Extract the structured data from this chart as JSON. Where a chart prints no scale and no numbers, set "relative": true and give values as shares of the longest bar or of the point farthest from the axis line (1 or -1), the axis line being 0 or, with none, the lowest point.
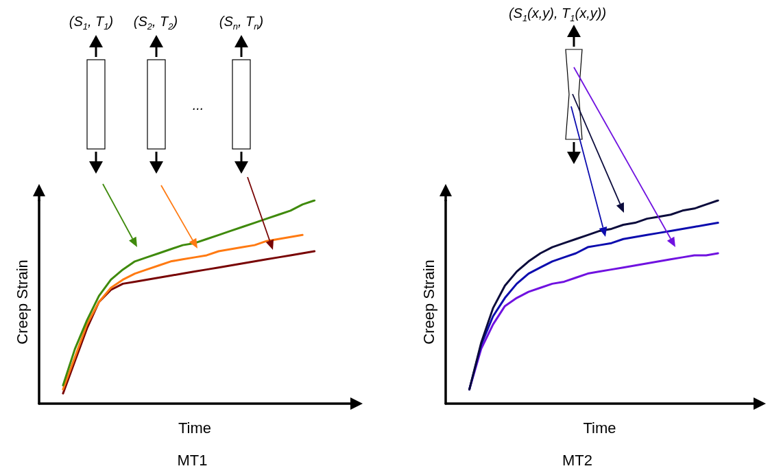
{
  "chart_data": [
    {
      "type": "line",
      "title": "MT1",
      "xlabel": "Time",
      "ylabel": "Creep Strain",
      "relative": true,
      "categories": [
        null,
        null,
        null,
        null,
        null,
        null,
        null,
        null,
        null,
        null,
        null,
        null,
        null,
        null,
        null,
        null,
        null,
        null,
        null,
        null,
        null,
        null,
        null,
        null,
        null,
        null,
        null
      ],
      "series": [
        {
          "color": "#3f8a0c",
          "values": [
            null,
            null,
            0.09,
            0.27,
            0.41,
            0.53,
            0.61,
            0.66,
            0.7,
            0.72,
            0.74,
            0.76,
            0.78,
            0.79,
            0.81,
            0.83,
            0.85,
            0.87,
            0.89,
            0.91,
            0.93,
            0.95,
            0.98,
            1.0,
            null,
            null,
            null
          ]
        },
        {
          "color": "#ff7a12",
          "values": [
            null,
            null,
            0.07,
            0.23,
            0.39,
            0.5,
            0.57,
            0.61,
            0.64,
            0.66,
            0.68,
            0.7,
            0.71,
            0.72,
            0.73,
            0.75,
            0.76,
            0.77,
            0.78,
            0.8,
            0.81,
            0.82,
            0.83,
            null,
            null,
            null,
            null
          ]
        },
        {
          "color": "#780404",
          "values": [
            null,
            null,
            0.05,
            0.21,
            0.37,
            0.5,
            0.56,
            0.59,
            0.6,
            0.61,
            0.62,
            0.63,
            0.64,
            0.65,
            0.66,
            0.67,
            0.68,
            0.69,
            0.7,
            0.71,
            0.72,
            0.73,
            0.74,
            0.75,
            null,
            null,
            null
          ]
        }
      ],
      "annotations": [
        "(S$_{1}$, T$_{1}$)",
        "(S$_{2}$, T$_{2}$)",
        "...",
        "(S$_{n}$, T$_{n}$)"
      ]
    },
    {
      "type": "line",
      "title": "MT2",
      "xlabel": "Time",
      "ylabel": "Creep Strain",
      "relative": true,
      "categories": [
        null,
        null,
        null,
        null,
        null,
        null,
        null,
        null,
        null,
        null,
        null,
        null,
        null,
        null,
        null,
        null,
        null,
        null,
        null,
        null,
        null,
        null,
        null,
        null,
        null,
        null,
        null
      ],
      "series": [
        {
          "color": "#0b0b3c",
          "values": [
            null,
            null,
            0.07,
            0.3,
            0.47,
            0.58,
            0.65,
            0.7,
            0.74,
            0.77,
            0.79,
            0.81,
            0.83,
            0.85,
            0.86,
            0.88,
            0.89,
            0.91,
            0.92,
            0.93,
            0.95,
            0.96,
            0.98,
            1.0,
            null,
            null,
            null
          ]
        },
        {
          "color": "#0c0cae",
          "values": [
            null,
            null,
            0.07,
            0.29,
            0.43,
            0.52,
            0.59,
            0.64,
            0.67,
            0.7,
            0.72,
            0.74,
            0.77,
            0.78,
            0.79,
            0.81,
            0.82,
            0.83,
            0.84,
            0.85,
            0.86,
            0.87,
            0.88,
            0.89,
            null,
            null,
            null
          ]
        },
        {
          "color": "#7012e0",
          "values": [
            null,
            null,
            0.07,
            0.27,
            0.39,
            0.48,
            0.52,
            0.55,
            0.57,
            0.59,
            0.6,
            0.62,
            0.64,
            0.65,
            0.66,
            0.67,
            0.68,
            0.69,
            0.7,
            0.71,
            0.72,
            0.73,
            0.73,
            0.74,
            null,
            null,
            null
          ]
        }
      ],
      "annotations": [
        "(S$_{1}$(x,y), T$_{1}$(x,y))"
      ]
    }
  ]
}
